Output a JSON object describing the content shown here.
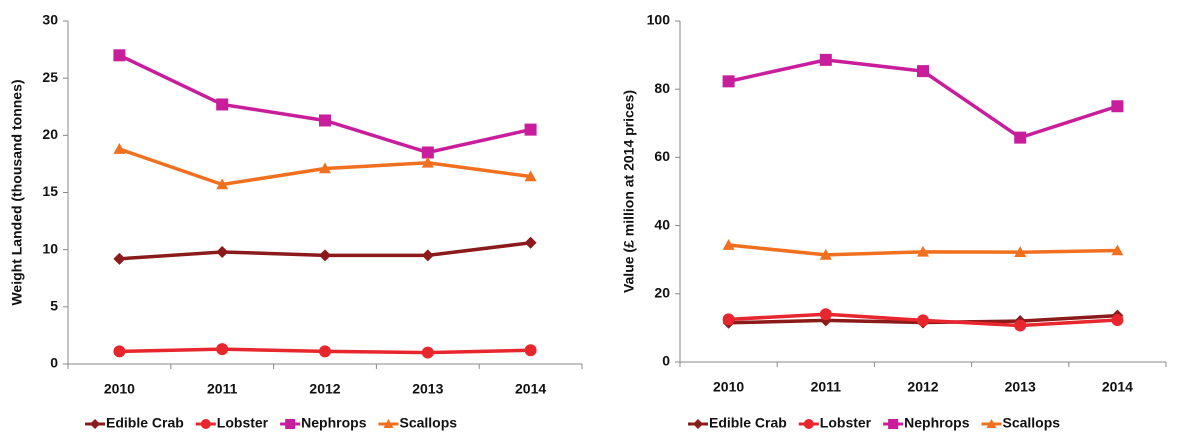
{
  "chart_data": [
    {
      "type": "line",
      "ylabel": "Weight Landed (thousand tonnes)",
      "categories": [
        "2010",
        "2011",
        "2012",
        "2013",
        "2014"
      ],
      "ylim": [
        0,
        30
      ],
      "yticks": [
        0,
        5,
        10,
        15,
        20,
        25,
        30
      ],
      "series": [
        {
          "name": "Edible Crab",
          "color": "#8b1a1a",
          "marker": "diamond",
          "values": [
            9.2,
            9.8,
            9.5,
            9.5,
            10.6
          ]
        },
        {
          "name": "Lobster",
          "color": "#e8262e",
          "marker": "circle",
          "values": [
            1.1,
            1.3,
            1.1,
            1.0,
            1.2
          ]
        },
        {
          "name": "Nephrops",
          "color": "#c81e9c",
          "marker": "square",
          "values": [
            27.0,
            22.7,
            21.3,
            18.5,
            20.5
          ]
        },
        {
          "name": "Scallops",
          "color": "#f07020",
          "marker": "triangle",
          "values": [
            18.8,
            15.7,
            17.1,
            17.6,
            16.4
          ]
        }
      ]
    },
    {
      "type": "line",
      "ylabel": "Value (£ million at 2014 prices)",
      "categories": [
        "2010",
        "2011",
        "2012",
        "2013",
        "2014"
      ],
      "ylim": [
        0,
        100
      ],
      "yticks": [
        0,
        20,
        40,
        60,
        80,
        100
      ],
      "series": [
        {
          "name": "Edible Crab",
          "color": "#8b1a1a",
          "marker": "diamond",
          "values": [
            11.5,
            12.2,
            11.6,
            12.0,
            13.6
          ]
        },
        {
          "name": "Lobster",
          "color": "#e8262e",
          "marker": "circle",
          "values": [
            12.5,
            14.0,
            12.2,
            10.7,
            12.3
          ]
        },
        {
          "name": "Nephrops",
          "color": "#c81e9c",
          "marker": "square",
          "values": [
            82.3,
            88.6,
            85.3,
            65.8,
            75.0
          ]
        },
        {
          "name": "Scallops",
          "color": "#f07020",
          "marker": "triangle",
          "values": [
            34.3,
            31.4,
            32.3,
            32.2,
            32.7
          ]
        }
      ]
    }
  ]
}
